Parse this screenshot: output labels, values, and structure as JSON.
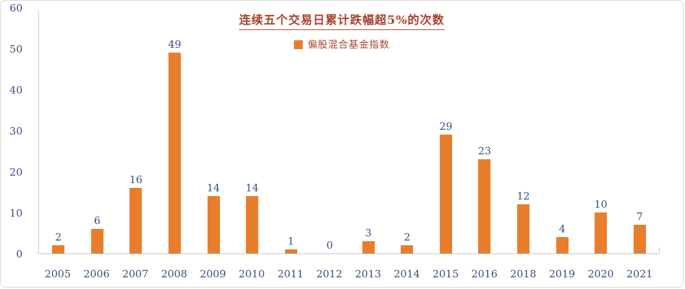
{
  "chart_data": {
    "type": "bar",
    "title": "连续五个交易日累计跌幅超5%的次数",
    "legend": [
      "偏股混合基金指数"
    ],
    "categories": [
      "2005",
      "2006",
      "2007",
      "2008",
      "2009",
      "2010",
      "2011",
      "2012",
      "2013",
      "2014",
      "2015",
      "2016",
      "2018",
      "2019",
      "2020",
      "2021"
    ],
    "values": [
      2,
      6,
      16,
      49,
      14,
      14,
      1,
      0,
      3,
      2,
      29,
      23,
      12,
      4,
      10,
      7
    ],
    "xlabel": "",
    "ylabel": "",
    "ylim": [
      0,
      60
    ],
    "yticks": [
      0,
      10,
      20,
      30,
      40,
      50,
      60
    ],
    "grid": false,
    "legend_position": "top-center",
    "colors": {
      "bar": "#e87e2b",
      "title": "#a8432e",
      "legend_text": "#a8432e",
      "axis_text": "#33507f",
      "axis_line": "#c9c9c9",
      "border": "#d9d9d9",
      "background": "#ffffff"
    }
  }
}
